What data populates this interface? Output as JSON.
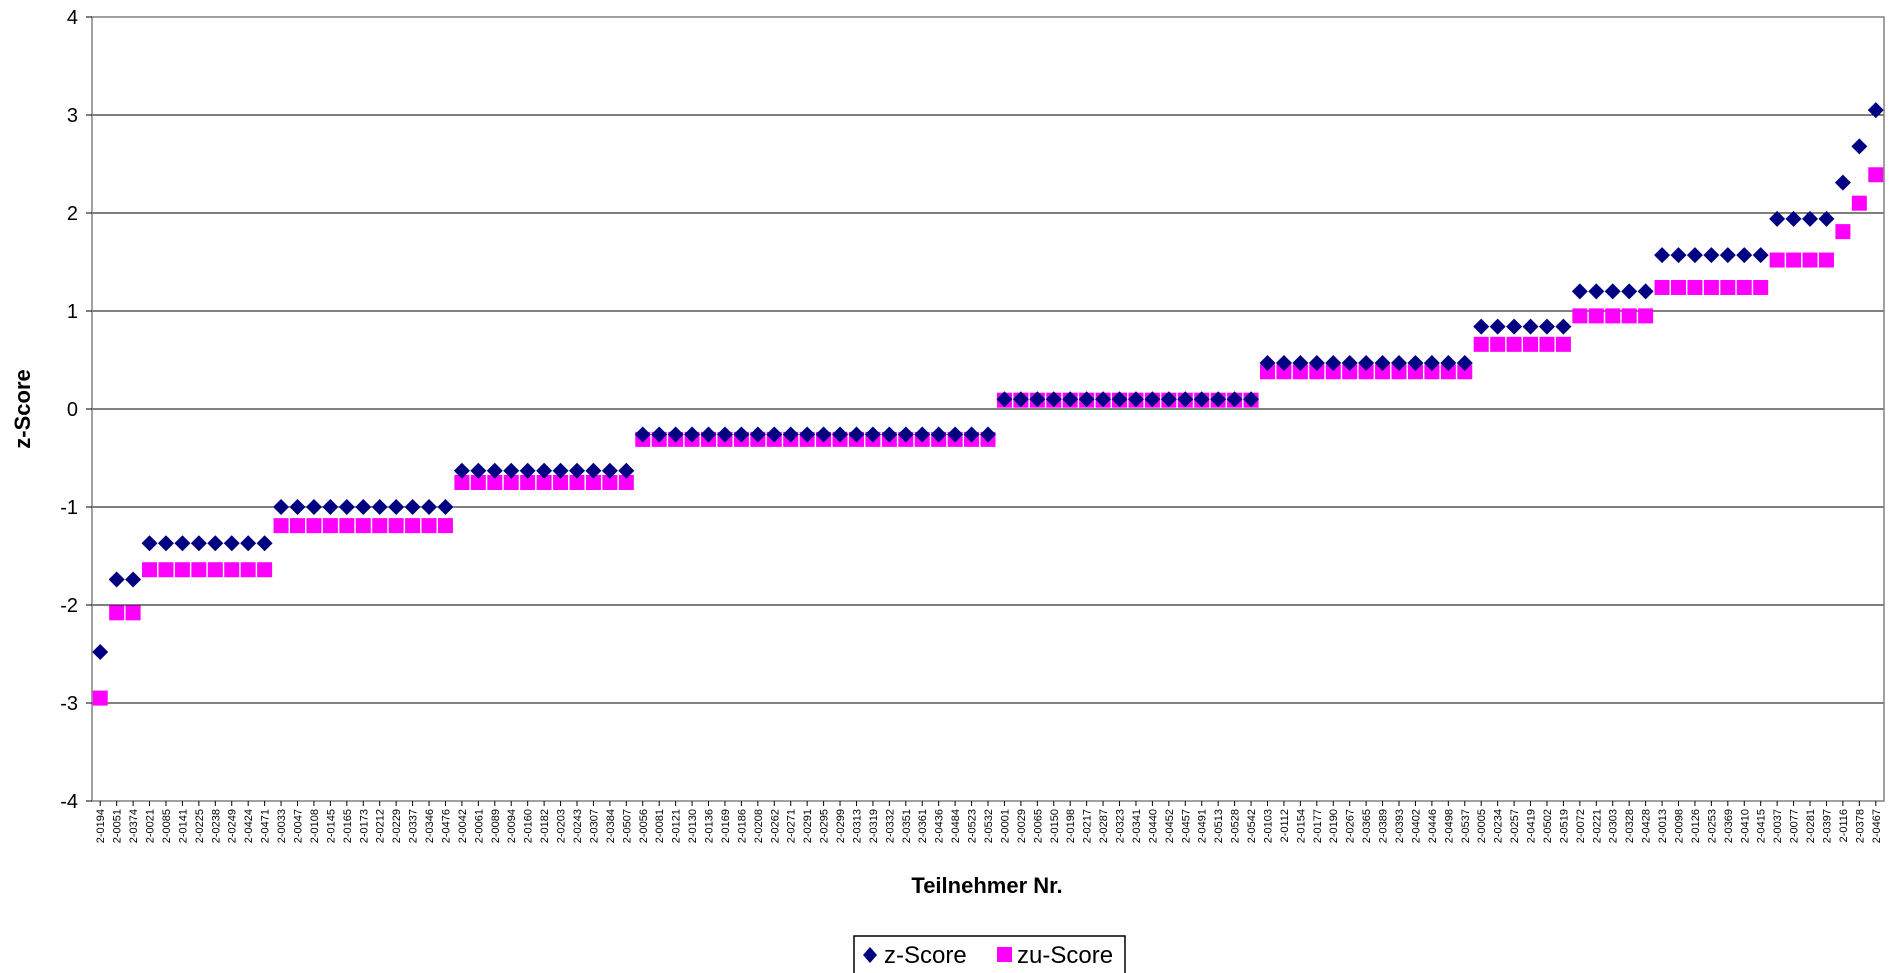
{
  "chart_data": {
    "type": "scatter",
    "xlabel": "Teilnehmer Nr.",
    "ylabel": "z-Score",
    "ylim": [
      -4,
      4
    ],
    "yticks": [
      -4,
      -3,
      -2,
      -1,
      0,
      1,
      2,
      3,
      4
    ],
    "grid": true,
    "legend_position": "bottom-center",
    "categories": [
      "2-0194",
      "2-0051",
      "2-0374",
      "2-0021",
      "2-0085",
      "2-0141",
      "2-0225",
      "2-0238",
      "2-0249",
      "2-0424",
      "2-0471",
      "2-0033",
      "2-0047",
      "2-0108",
      "2-0145",
      "2-0165",
      "2-0173",
      "2-0212",
      "2-0229",
      "2-0337",
      "2-0346",
      "2-0476",
      "2-0042",
      "2-0061",
      "2-0089",
      "2-0094",
      "2-0160",
      "2-0182",
      "2-0203",
      "2-0243",
      "2-0307",
      "2-0384",
      "2-0507",
      "2-0056",
      "2-0081",
      "2-0121",
      "2-0130",
      "2-0136",
      "2-0169",
      "2-0186",
      "2-0208",
      "2-0262",
      "2-0271",
      "2-0291",
      "2-0295",
      "2-0299",
      "2-0313",
      "2-0319",
      "2-0332",
      "2-0351",
      "2-0361",
      "2-0436",
      "2-0484",
      "2-0523",
      "2-0532",
      "2-0001",
      "2-0029",
      "2-0065",
      "2-0150",
      "2-0198",
      "2-0217",
      "2-0287",
      "2-0323",
      "2-0341",
      "2-0440",
      "2-0452",
      "2-0457",
      "2-0491",
      "2-0513",
      "2-0528",
      "2-0542",
      "2-0103",
      "2-0112",
      "2-0154",
      "2-0177",
      "2-0190",
      "2-0267",
      "2-0365",
      "2-0389",
      "2-0393",
      "2-0402",
      "2-0446",
      "2-0498",
      "2-0537",
      "2-0005",
      "2-0234",
      "2-0257",
      "2-0419",
      "2-0502",
      "2-0519",
      "2-0072",
      "2-0221",
      "2-0303",
      "2-0328",
      "2-0428",
      "2-0013",
      "2-0098",
      "2-0126",
      "2-0253",
      "2-0369",
      "2-0410",
      "2-0415",
      "2-0037",
      "2-0077",
      "2-0281",
      "2-0397",
      "2-0116",
      "2-0378",
      "2-0467"
    ],
    "series": [
      {
        "name": "z-Score",
        "color": "#000080",
        "marker": "diamond",
        "values": [
          -2.48,
          -1.74,
          -1.74,
          -1.37,
          -1.37,
          -1.37,
          -1.37,
          -1.37,
          -1.37,
          -1.37,
          -1.37,
          -1.0,
          -1.0,
          -1.0,
          -1.0,
          -1.0,
          -1.0,
          -1.0,
          -1.0,
          -1.0,
          -1.0,
          -1.0,
          -0.63,
          -0.63,
          -0.63,
          -0.63,
          -0.63,
          -0.63,
          -0.63,
          -0.63,
          -0.63,
          -0.63,
          -0.63,
          -0.26,
          -0.26,
          -0.26,
          -0.26,
          -0.26,
          -0.26,
          -0.26,
          -0.26,
          -0.26,
          -0.26,
          -0.26,
          -0.26,
          -0.26,
          -0.26,
          -0.26,
          -0.26,
          -0.26,
          -0.26,
          -0.26,
          -0.26,
          -0.26,
          -0.26,
          0.1,
          0.1,
          0.1,
          0.1,
          0.1,
          0.1,
          0.1,
          0.1,
          0.1,
          0.1,
          0.1,
          0.1,
          0.1,
          0.1,
          0.1,
          0.1,
          0.47,
          0.47,
          0.47,
          0.47,
          0.47,
          0.47,
          0.47,
          0.47,
          0.47,
          0.47,
          0.47,
          0.47,
          0.47,
          0.84,
          0.84,
          0.84,
          0.84,
          0.84,
          0.84,
          1.2,
          1.2,
          1.2,
          1.2,
          1.2,
          1.57,
          1.57,
          1.57,
          1.57,
          1.57,
          1.57,
          1.57,
          1.94,
          1.94,
          1.94,
          1.94,
          2.31,
          2.68,
          3.05
        ]
      },
      {
        "name": "zu-Score",
        "color": "#ff00ff",
        "marker": "square",
        "values": [
          -2.95,
          -2.08,
          -2.08,
          -1.64,
          -1.64,
          -1.64,
          -1.64,
          -1.64,
          -1.64,
          -1.64,
          -1.64,
          -1.19,
          -1.19,
          -1.19,
          -1.19,
          -1.19,
          -1.19,
          -1.19,
          -1.19,
          -1.19,
          -1.19,
          -1.19,
          -0.75,
          -0.75,
          -0.75,
          -0.75,
          -0.75,
          -0.75,
          -0.75,
          -0.75,
          -0.75,
          -0.75,
          -0.75,
          -0.31,
          -0.31,
          -0.31,
          -0.31,
          -0.31,
          -0.31,
          -0.31,
          -0.31,
          -0.31,
          -0.31,
          -0.31,
          -0.31,
          -0.31,
          -0.31,
          -0.31,
          -0.31,
          -0.31,
          -0.31,
          -0.31,
          -0.31,
          -0.31,
          -0.31,
          0.09,
          0.09,
          0.09,
          0.09,
          0.09,
          0.09,
          0.09,
          0.09,
          0.09,
          0.09,
          0.09,
          0.09,
          0.09,
          0.09,
          0.09,
          0.09,
          0.38,
          0.38,
          0.38,
          0.38,
          0.38,
          0.38,
          0.38,
          0.38,
          0.38,
          0.38,
          0.38,
          0.38,
          0.38,
          0.66,
          0.66,
          0.66,
          0.66,
          0.66,
          0.66,
          0.95,
          0.95,
          0.95,
          0.95,
          0.95,
          1.24,
          1.24,
          1.24,
          1.24,
          1.24,
          1.24,
          1.24,
          1.52,
          1.52,
          1.52,
          1.52,
          1.81,
          2.1,
          2.39
        ]
      }
    ]
  }
}
